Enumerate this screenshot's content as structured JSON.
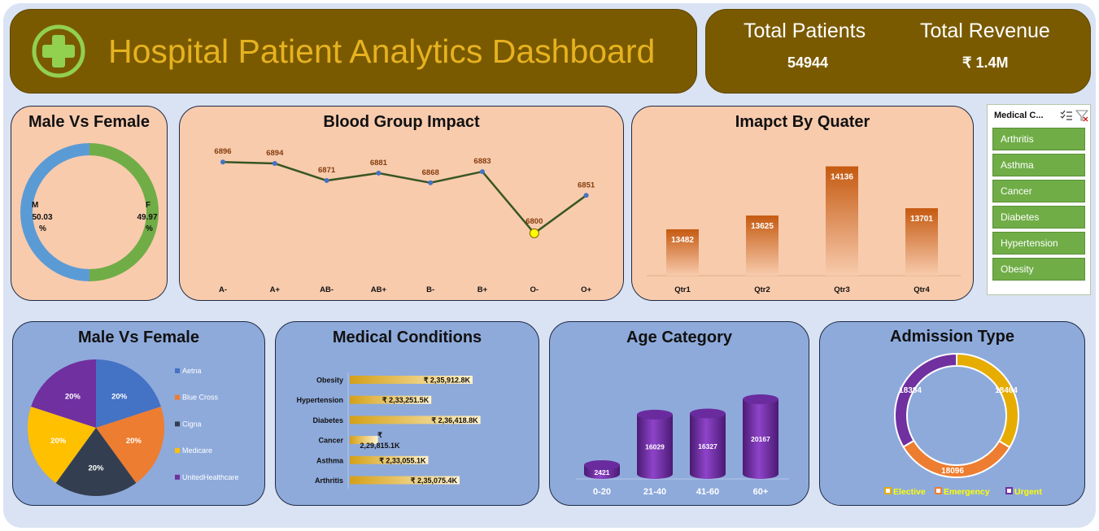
{
  "header": {
    "title": "Hospital Patient Analytics Dashboard",
    "logo_icon": "plus-cross-icon"
  },
  "kpis": {
    "total_patients_label": "Total Patients",
    "total_patients_value": "54944",
    "total_revenue_label": "Total Revenue",
    "total_revenue_value": "₹ 1.4M"
  },
  "slicer": {
    "header": "Medical C...",
    "multiselect_icon": "multi-select-icon",
    "clear_filter_icon": "clear-filter-icon",
    "items": [
      "Arthritis",
      "Asthma",
      "Cancer",
      "Diabetes",
      "Hypertension",
      "Obesity"
    ],
    "item_color": "#70ad47"
  },
  "panels": {
    "gender_donut_title": "Male Vs Female",
    "blood_title": "Blood Group Impact",
    "quarter_title": "Imapct By Quater",
    "insurance_title": "Male Vs Female",
    "conditions_title": "Medical Conditions",
    "age_title": "Age Category",
    "admission_title": "Admission Type"
  },
  "chart_data": [
    {
      "type": "pie",
      "variant": "donut",
      "categories": [
        "M",
        "F"
      ],
      "values": [
        50.03,
        49.97
      ],
      "labels": {
        "m_name": "M",
        "m_value": "50.03",
        "f_name": "F",
        "f_value": "49.97",
        "unit": "%"
      },
      "colors": [
        "#5b9bd5",
        "#70ad47"
      ]
    },
    {
      "type": "line",
      "categories": [
        "A-",
        "A+",
        "AB-",
        "AB+",
        "B-",
        "B+",
        "O-",
        "O+"
      ],
      "values": [
        6896,
        6894,
        6871,
        6881,
        6868,
        6883,
        6800,
        6851
      ],
      "highlight_index": 6,
      "colors": {
        "line": "#375623",
        "marker": "#4472c4",
        "highlight": "#ffff00",
        "label": "#843c0c"
      }
    },
    {
      "type": "bar",
      "categories": [
        "Qtr1",
        "Qtr2",
        "Qtr3",
        "Qtr4"
      ],
      "values": [
        13482,
        13625,
        14136,
        13701
      ],
      "colors": {
        "bar": "#c55a11",
        "label": "#ffffff"
      }
    },
    {
      "type": "pie",
      "categories": [
        "Aetna",
        "Blue Cross",
        "Cigna",
        "Medicare",
        "UnitedHealthcare"
      ],
      "values": [
        20,
        20,
        20,
        20,
        20
      ],
      "value_labels": [
        "20%",
        "20%",
        "20%",
        "20%",
        "20%"
      ],
      "legend": "right",
      "colors": [
        "#4472c4",
        "#ed7d31",
        "#333f50",
        "#ffc000",
        "#7030a0"
      ]
    },
    {
      "type": "bar",
      "orientation": "horizontal",
      "categories": [
        "Obesity",
        "Hypertension",
        "Diabetes",
        "Cancer",
        "Asthma",
        "Arthritis"
      ],
      "values": [
        235912.8,
        233251.5,
        236418.8,
        229815.1,
        233055.1,
        235075.4
      ],
      "value_labels": [
        "₹ 2,35,912.8K",
        "₹ 2,33,251.5K",
        "₹ 2,36,418.8K",
        "₹ 2,29,815.1K",
        "₹ 2,33,055.1K",
        "₹ 2,35,075.4K"
      ],
      "colors": {
        "bar": "#d4a017"
      }
    },
    {
      "type": "bar",
      "variant": "cylinder",
      "categories": [
        "0-20",
        "21-40",
        "41-60",
        "60+"
      ],
      "values": [
        2421,
        16029,
        16327,
        20167
      ],
      "colors": {
        "bar": "#7030a0"
      }
    },
    {
      "type": "pie",
      "variant": "donut",
      "categories": [
        "Elective",
        "Emergency",
        "Urgent"
      ],
      "values": [
        18464,
        18096,
        18384
      ],
      "legend": "bottom",
      "colors": [
        "#e6ac00",
        "#ed7d31",
        "#7030a0"
      ]
    }
  ]
}
